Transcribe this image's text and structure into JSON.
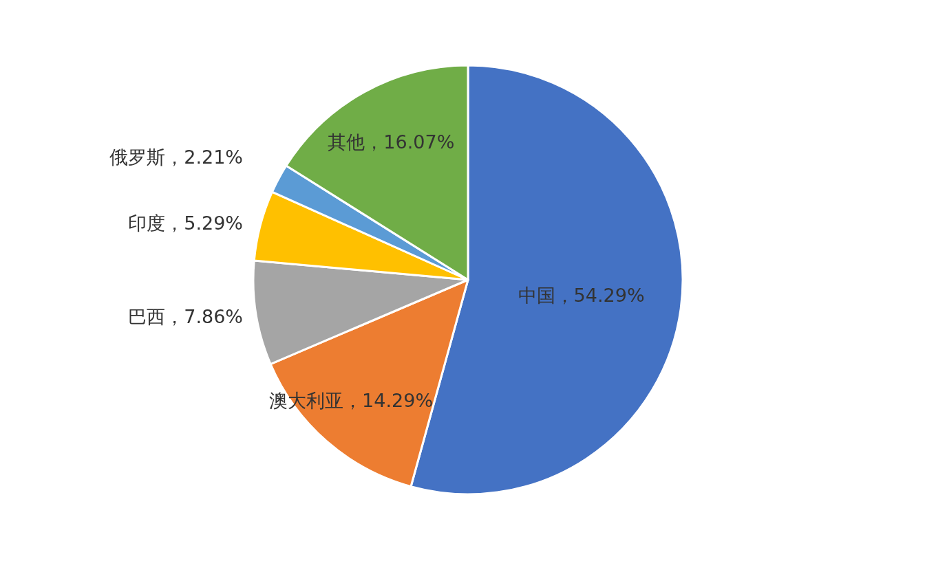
{
  "chart_data": {
    "type": "pie",
    "categories": [
      "中国",
      "澳大利亚",
      "巴西",
      "印度",
      "俄罗斯",
      "其他"
    ],
    "values": [
      54.29,
      14.29,
      7.86,
      5.29,
      2.21,
      16.07
    ],
    "value_labels": [
      "54.29%",
      "14.29%",
      "7.86%",
      "5.29%",
      "2.21%",
      "16.07%"
    ],
    "colors": [
      "#4472c4",
      "#ed7d31",
      "#a5a5a5",
      "#ffc000",
      "#5b9bd5",
      "#70ad47"
    ]
  }
}
